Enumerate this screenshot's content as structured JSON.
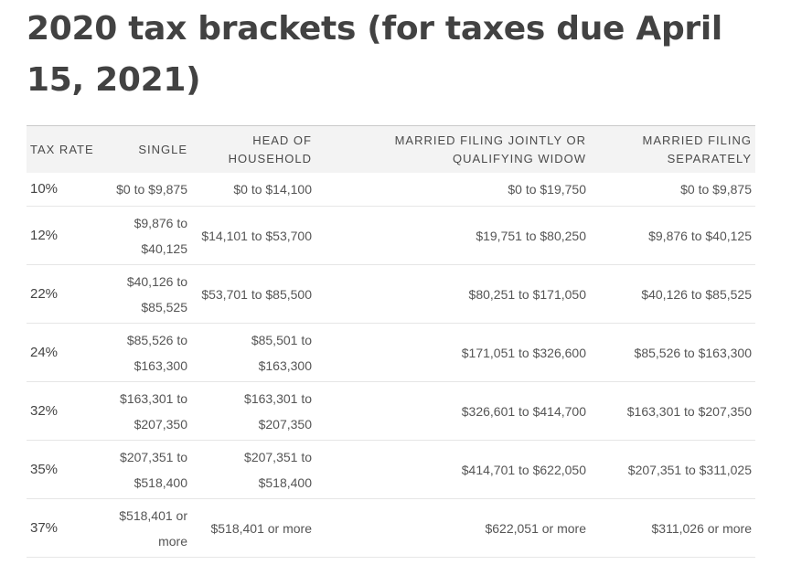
{
  "title": "2020 tax brackets (for taxes due April 15, 2021)",
  "table": {
    "headers": [
      "Tax rate",
      "Single",
      "Head of household",
      "Married filing jointly or qualifying widow",
      "Married filing separately"
    ],
    "rows": [
      [
        "10%",
        "$0 to $9,875",
        "$0 to $14,100",
        "$0 to $19,750",
        "$0 to $9,875"
      ],
      [
        "12%",
        "$9,876 to $40,125",
        "$14,101 to $53,700",
        "$19,751 to $80,250",
        "$9,876 to $40,125"
      ],
      [
        "22%",
        "$40,126 to $85,525",
        "$53,701 to $85,500",
        "$80,251 to $171,050",
        "$40,126 to $85,525"
      ],
      [
        "24%",
        "$85,526 to $163,300",
        "$85,501 to $163,300",
        "$171,051 to $326,600",
        "$85,526 to $163,300"
      ],
      [
        "32%",
        "$163,301 to $207,350",
        "$163,301 to $207,350",
        "$326,601 to $414,700",
        "$163,301 to $207,350"
      ],
      [
        "35%",
        "$207,351 to $518,400",
        "$207,351 to $518,400",
        "$414,701 to $622,050",
        "$207,351 to $311,025"
      ],
      [
        "37%",
        "$518,401 or more",
        "$518,401 or more",
        "$622,051 or more",
        "$311,026 or more"
      ]
    ]
  }
}
